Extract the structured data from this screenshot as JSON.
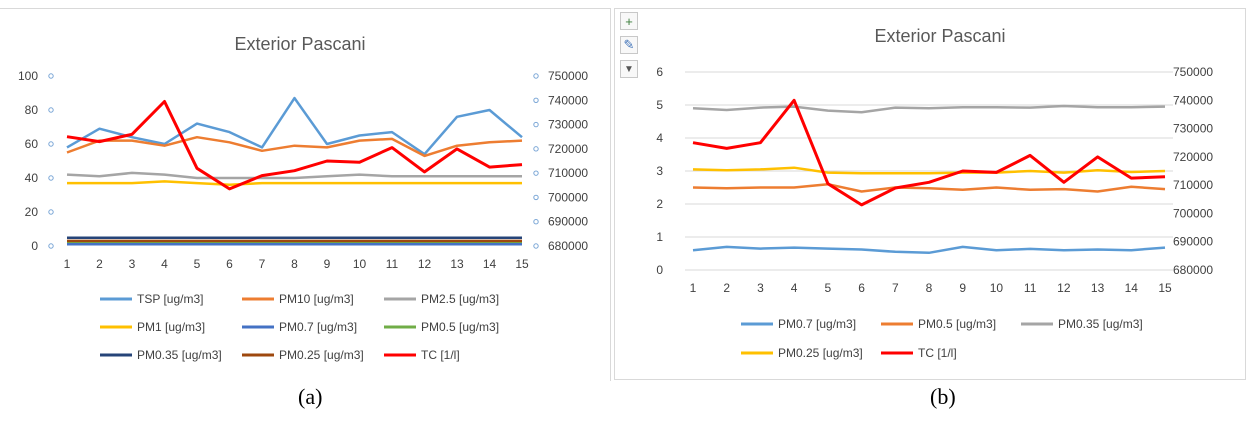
{
  "panels": [
    {
      "caption": "(a)",
      "chart_data": {
        "type": "line",
        "title": "Exterior Pascani",
        "x": [
          1,
          2,
          3,
          4,
          5,
          6,
          7,
          8,
          9,
          10,
          11,
          12,
          13,
          14,
          15
        ],
        "ylim": [
          0,
          100
        ],
        "y_ticks": [
          "0",
          "20",
          "40",
          "60",
          "80",
          "100"
        ],
        "y2lim": [
          680000,
          750000
        ],
        "y2_ticks": [
          "680000",
          "690000",
          "700000",
          "710000",
          "720000",
          "730000",
          "740000",
          "750000"
        ],
        "grid": false,
        "legend_position": "bottom",
        "series": [
          {
            "name": "TSP [ug/m3]",
            "color": "#5B9BD5",
            "axis": "left",
            "values": [
              58,
              69,
              64,
              60,
              72,
              67,
              58,
              87,
              60,
              65,
              67,
              54,
              76,
              80,
              64
            ]
          },
          {
            "name": "PM10 [ug/m3]",
            "color": "#ED7D31",
            "axis": "left",
            "values": [
              55,
              62,
              62,
              59,
              64,
              61,
              56,
              59,
              58,
              62,
              63,
              53,
              59,
              61,
              62
            ]
          },
          {
            "name": "PM2.5 [ug/m3]",
            "color": "#A5A5A5",
            "axis": "left",
            "values": [
              42,
              41,
              43,
              42,
              40,
              40,
              40,
              40,
              41,
              42,
              41,
              41,
              41,
              41,
              41
            ]
          },
          {
            "name": "PM1 [ug/m3]",
            "color": "#FFC000",
            "axis": "left",
            "values": [
              37,
              37,
              37,
              38,
              37,
              36,
              37,
              37,
              37,
              37,
              37,
              37,
              37,
              37,
              37
            ]
          },
          {
            "name": "PM0.7 [ug/m3]",
            "color": "#4472C4",
            "axis": "left",
            "values": [
              1,
              1,
              1,
              1,
              1,
              1,
              1,
              1,
              1,
              1,
              1,
              1,
              1,
              1,
              1
            ]
          },
          {
            "name": "PM0.5 [ug/m3]",
            "color": "#70AD47",
            "axis": "left",
            "values": [
              2.5,
              2.5,
              2.5,
              2.5,
              2.5,
              2.5,
              2.5,
              2.5,
              2.5,
              2.5,
              2.5,
              2.5,
              2.5,
              2.5,
              2.5
            ]
          },
          {
            "name": "PM0.35 [ug/m3]",
            "color": "#264478",
            "axis": "left",
            "values": [
              4.9,
              4.9,
              4.9,
              4.9,
              4.9,
              4.9,
              4.9,
              4.9,
              4.9,
              4.9,
              4.9,
              4.9,
              4.9,
              4.9,
              4.9
            ]
          },
          {
            "name": "PM0.25 [ug/m3]",
            "color": "#9E480E",
            "axis": "left",
            "values": [
              3,
              3,
              3,
              3,
              3,
              3,
              3,
              3,
              3,
              3,
              3,
              3,
              3,
              3,
              3
            ]
          },
          {
            "name": "TC [1/l]",
            "color": "#FF0000",
            "axis": "right",
            "values": [
              725000,
              723000,
              726000,
              739500,
              712000,
              703500,
              709000,
              711000,
              715000,
              714500,
              720500,
              710500,
              720000,
              712500,
              713500
            ]
          }
        ]
      }
    },
    {
      "caption": "(b)",
      "chart_data": {
        "type": "line",
        "title": "Exterior Pascani",
        "x": [
          1,
          2,
          3,
          4,
          5,
          6,
          7,
          8,
          9,
          10,
          11,
          12,
          13,
          14,
          15
        ],
        "ylim": [
          0,
          6
        ],
        "y_ticks": [
          "0",
          "1",
          "2",
          "3",
          "4",
          "5",
          "6"
        ],
        "y2lim": [
          680000,
          750000
        ],
        "y2_ticks": [
          "680000",
          "690000",
          "700000",
          "710000",
          "720000",
          "730000",
          "740000",
          "750000"
        ],
        "grid": true,
        "legend_position": "bottom",
        "series": [
          {
            "name": "PM0.7 [ug/m3]",
            "color": "#5B9BD5",
            "axis": "left",
            "values": [
              0.6,
              0.7,
              0.65,
              0.68,
              0.65,
              0.62,
              0.55,
              0.52,
              0.7,
              0.6,
              0.64,
              0.6,
              0.62,
              0.6,
              0.68
            ]
          },
          {
            "name": "PM0.5 [ug/m3]",
            "color": "#ED7D31",
            "axis": "left",
            "values": [
              2.5,
              2.48,
              2.5,
              2.5,
              2.6,
              2.38,
              2.5,
              2.48,
              2.43,
              2.5,
              2.43,
              2.45,
              2.38,
              2.52,
              2.45
            ]
          },
          {
            "name": "PM0.35 [ug/m3]",
            "color": "#A5A5A5",
            "axis": "left",
            "values": [
              4.9,
              4.85,
              4.92,
              4.95,
              4.83,
              4.78,
              4.92,
              4.9,
              4.93,
              4.93,
              4.92,
              4.97,
              4.93,
              4.93,
              4.95
            ]
          },
          {
            "name": "PM0.25 [ug/m3]",
            "color": "#FFC000",
            "axis": "left",
            "values": [
              3.05,
              3.02,
              3.05,
              3.1,
              2.95,
              2.93,
              2.93,
              2.93,
              2.95,
              2.95,
              3.0,
              2.95,
              3.02,
              2.97,
              3.0
            ]
          },
          {
            "name": "TC [1/l]",
            "color": "#FF0000",
            "axis": "right",
            "values": [
              725000,
              723000,
              725000,
              740000,
              710500,
              703000,
              709000,
              711000,
              715000,
              714500,
              720500,
              711000,
              720000,
              712500,
              713000
            ]
          }
        ]
      }
    }
  ],
  "toolbar": {
    "buttons": [
      {
        "icon": "plus-icon",
        "glyph": "+"
      },
      {
        "icon": "brush-icon",
        "glyph": "✎"
      },
      {
        "icon": "filter-icon",
        "glyph": "▼"
      }
    ]
  }
}
